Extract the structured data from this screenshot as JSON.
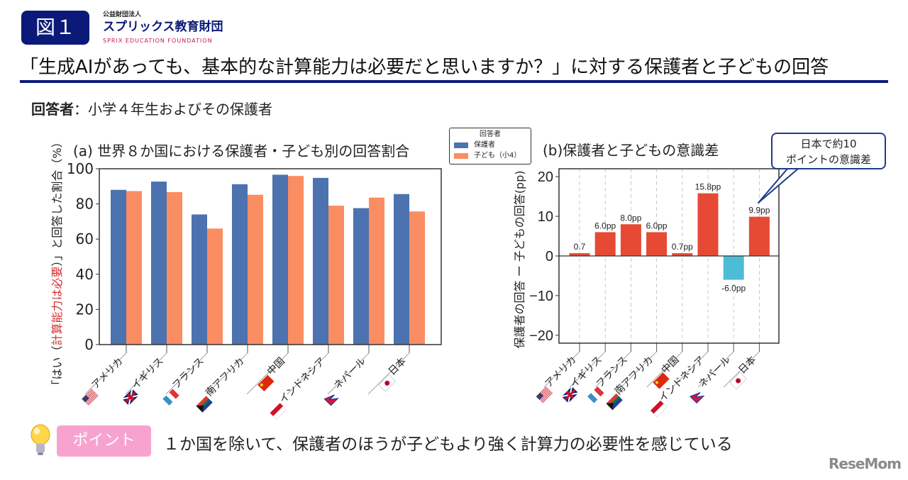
{
  "header": {
    "figure_badge": "図１",
    "org_small": "公益財団法人",
    "org_name": "スプリックス教育財団",
    "org_en": "SPRIX EDUCATION FOUNDATION",
    "title": "「生成AIがあっても、基本的な計算能力は必要だと思いますか？」に対する保護者と子どもの回答",
    "respondents_label": "回答者",
    "respondents_value": "：小学４年生およびその保護者"
  },
  "legend": {
    "title": "回答者",
    "items": [
      "保護者",
      "子ども（小4）"
    ]
  },
  "callout": {
    "line1": "日本で約10",
    "line2": "ポイントの意識差"
  },
  "footer": {
    "point_label": "ポイント",
    "point_text": "１か国を除いて、保護者のほうが子どもより強く計算力の必要性を感じている",
    "logo": "ReseMom"
  },
  "colors": {
    "parent": "#4c72b0",
    "child": "#fb8d62",
    "positive": "#e64a35",
    "negative": "#4dbcd6",
    "navy": "#0b1a78"
  },
  "chart_data": [
    {
      "type": "bar",
      "title": "(a) 世界８か国における保護者・子ども別の回答割合",
      "ylabel_parts": [
        "「はい（",
        "計算能力は必要",
        "）」と回答した割合（%）"
      ],
      "categories": [
        "アメリカ",
        "イギリス",
        "フランス",
        "南アフリカ",
        "中国",
        "インドネシア",
        "ネパール",
        "日本"
      ],
      "flag_icons": [
        "us-flag-icon",
        "uk-flag-icon",
        "france-flag-icon",
        "south-africa-flag-icon",
        "china-flag-icon",
        "indonesia-flag-icon",
        "nepal-flag-icon",
        "japan-flag-icon"
      ],
      "series": [
        {
          "name": "保護者",
          "values": [
            88.0,
            92.7,
            74.0,
            91.2,
            96.6,
            94.8,
            77.6,
            85.6
          ]
        },
        {
          "name": "子ども（小4）",
          "values": [
            87.3,
            86.7,
            66.0,
            85.2,
            95.9,
            79.0,
            83.6,
            75.7
          ]
        }
      ],
      "ylim": [
        0,
        100
      ],
      "yticks": [
        "0",
        "20",
        "40",
        "60",
        "80",
        "100"
      ],
      "grid": false,
      "legend_position": "top-right"
    },
    {
      "type": "bar",
      "title": "(b)保護者と子どもの意識差",
      "ylabel": "保護者の回答 ー 子どもの回答(pp)",
      "categories": [
        "アメリカ",
        "イギリス",
        "フランス",
        "南アフリカ",
        "中国",
        "インドネシア",
        "ネパール",
        "日本"
      ],
      "values": [
        0.7,
        6.0,
        8.0,
        6.0,
        0.7,
        15.8,
        -6.0,
        9.9
      ],
      "data_labels": [
        "0.7",
        "6.0pp",
        "8.0pp",
        "6.0pp",
        "0.7pp",
        "15.8pp",
        "-6.0pp",
        "9.9pp"
      ],
      "ylim": [
        -22,
        22
      ],
      "yticks": [
        "20",
        "10",
        "0",
        "−10",
        "−20"
      ],
      "ytick_values": [
        20,
        10,
        0,
        -10,
        -20
      ],
      "grid": "vertical dashed"
    }
  ]
}
